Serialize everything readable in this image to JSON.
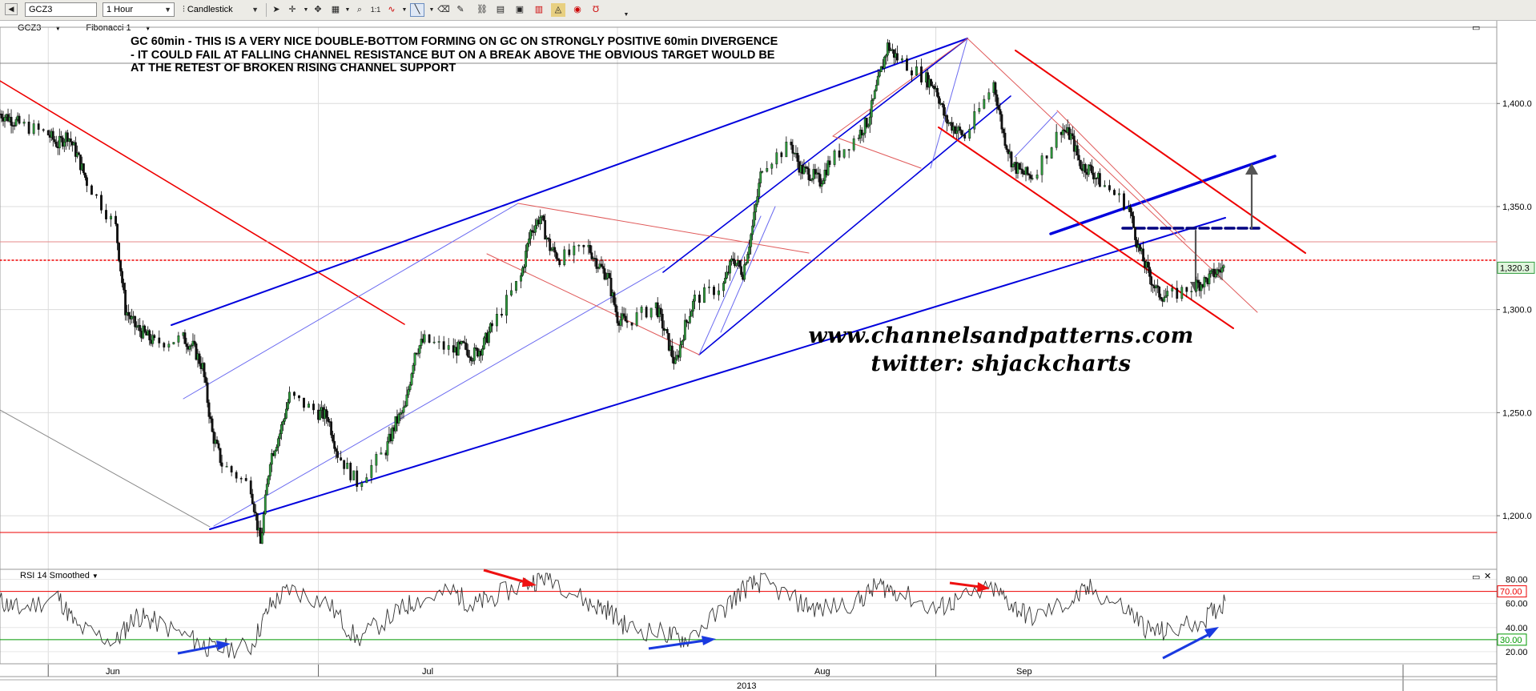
{
  "toolbar": {
    "symbol": "GCZ3",
    "interval": "1 Hour",
    "chart_type": "Candlestick",
    "icons": [
      "cursor-arrow-icon",
      "crosshair-icon",
      "grid-icon",
      "zoom-icon",
      "one-to-one-icon",
      "chart-style-icon",
      "line-tool-icon",
      "eraser-icon",
      "settings-icon",
      "template-icon",
      "alert-icon",
      "color-icon",
      "sound-icon",
      "unit-icon"
    ]
  },
  "instrument_bar": {
    "instrument": "GCZ3",
    "study": "Fibonacci 1"
  },
  "annotation": {
    "line1": "GC 60min - THIS IS A VERY NICE DOUBLE-BOTTOM FORMING ON GC ON STRONGLY POSITIVE 60min DIVERGENCE",
    "line2": "- IT COULD FAIL AT FALLING CHANNEL RESISTANCE BUT ON A BREAK ABOVE THE OBVIOUS TARGET WOULD BE",
    "line3": "AT THE RETEST OF BROKEN RISING CHANNEL SUPPORT"
  },
  "watermark": {
    "website": "www.channelsandpatterns.com",
    "twitter": "twitter: shjackcharts"
  },
  "colors": {
    "support": "#0000cc",
    "resistance": "#ee0000",
    "rsi": "#333333"
  },
  "chart_data": [
    {
      "type": "line",
      "series": [
        {
          "name": "",
          "x": [
            "2013-05-29",
            "2013-05-30",
            "2013-05-31",
            "2013-06-03",
            "2013-06-04",
            "2013-06-05",
            "2013-06-06",
            "2013-06-07",
            "2013-06-10",
            "2013-06-11",
            "2013-06-12",
            "2013-06-13",
            "2013-06-14",
            "2013-06-17",
            "2013-06-18",
            "2013-06-19",
            "2013-06-20",
            "2013-06-21",
            "2013-06-24",
            "2013-06-25",
            "2013-06-26",
            "2013-06-27",
            "2013-06-28",
            "2013-07-01",
            "2013-07-02",
            "2013-07-03",
            "2013-07-05",
            "2013-07-08",
            "2013-07-09",
            "2013-07-10",
            "2013-07-11",
            "2013-07-12",
            "2013-07-15",
            "2013-07-16",
            "2013-07-17",
            "2013-07-18",
            "2013-07-19",
            "2013-07-22",
            "2013-07-23",
            "2013-07-24",
            "2013-07-25",
            "2013-07-26",
            "2013-07-29",
            "2013-07-30",
            "2013-07-31",
            "2013-08-01",
            "2013-08-02",
            "2013-08-05",
            "2013-08-06",
            "2013-08-07",
            "2013-08-08",
            "2013-08-09",
            "2013-08-12",
            "2013-08-13",
            "2013-08-14",
            "2013-08-15",
            "2013-08-16",
            "2013-08-19",
            "2013-08-20",
            "2013-08-21",
            "2013-08-22",
            "2013-08-23",
            "2013-08-26",
            "2013-08-27",
            "2013-08-28",
            "2013-08-29",
            "2013-08-30",
            "2013-09-02",
            "2013-09-03",
            "2013-09-04",
            "2013-09-05",
            "2013-09-06",
            "2013-09-09",
            "2013-09-10",
            "2013-09-11",
            "2013-09-12",
            "2013-09-13",
            "2013-09-16",
            "2013-09-17",
            "2013-09-18",
            "2013-09-19",
            "2013-09-20",
            "2013-09-23",
            "2013-09-24",
            "2013-09-25",
            "2013-09-26",
            "2013-09-27",
            "2013-09-30",
            "2013-10-01",
            "2013-10-02",
            "2013-10-03"
          ],
          "y": [
            1395,
            1393,
            1390,
            1385,
            1380,
            1385,
            1375,
            1362,
            1340,
            1300,
            1292,
            1288,
            1284,
            1286,
            1282,
            1272,
            1240,
            1225,
            1214,
            1186,
            1228,
            1240,
            1258,
            1250,
            1248,
            1230,
            1216,
            1232,
            1245,
            1252,
            1280,
            1285,
            1280,
            1282,
            1278,
            1282,
            1292,
            1316,
            1338,
            1345,
            1330,
            1325,
            1330,
            1322,
            1316,
            1296,
            1294,
            1302,
            1288,
            1273,
            1292,
            1305,
            1312,
            1325,
            1318,
            1340,
            1370,
            1380,
            1368,
            1366,
            1362,
            1372,
            1385,
            1392,
            1410,
            1428,
            1422,
            1412,
            1408,
            1392,
            1388,
            1384,
            1410,
            1385,
            1370,
            1366,
            1365,
            1388,
            1384,
            1370,
            1368,
            1362,
            1350,
            1330,
            1318,
            1308,
            1306,
            1312,
            1314,
            1318,
            1320.3
          ]
        }
      ],
      "y_ticks": [
        "1,200.0",
        "1,250.0",
        "1,300.0",
        "1,350.0",
        "1,400.0"
      ],
      "ylim": [
        1174,
        1437
      ],
      "x_labels": [
        "Jun",
        "Jul",
        "Aug",
        "Sep"
      ],
      "year_label": "2013",
      "last_price_label": "1,320.3",
      "last_price": 1320.3,
      "grid": true
    },
    {
      "type": "line",
      "title": "RSI 14 Smoothed",
      "series": [
        {
          "name": "",
          "x": [
            "2013-05-29",
            "2013-05-31",
            "2013-06-04",
            "2013-06-06",
            "2013-06-10",
            "2013-06-12",
            "2013-06-14",
            "2013-06-18",
            "2013-06-20",
            "2013-06-24",
            "2013-06-26",
            "2013-06-28",
            "2013-07-02",
            "2013-07-05",
            "2013-07-09",
            "2013-07-11",
            "2013-07-15",
            "2013-07-17",
            "2013-07-19",
            "2013-07-23",
            "2013-07-25",
            "2013-07-29",
            "2013-07-31",
            "2013-08-02",
            "2013-08-06",
            "2013-08-08",
            "2013-08-12",
            "2013-08-14",
            "2013-08-16",
            "2013-08-20",
            "2013-08-22",
            "2013-08-26",
            "2013-08-28",
            "2013-08-30",
            "2013-09-03",
            "2013-09-05",
            "2013-09-09",
            "2013-09-11",
            "2013-09-13",
            "2013-09-17",
            "2013-09-19",
            "2013-09-23",
            "2013-09-25",
            "2013-09-27",
            "2013-10-01",
            "2013-10-03"
          ],
          "y": [
            62,
            55,
            66,
            40,
            28,
            50,
            45,
            30,
            22,
            24,
            58,
            72,
            60,
            30,
            52,
            62,
            70,
            58,
            65,
            78,
            83,
            60,
            55,
            40,
            35,
            30,
            55,
            72,
            78,
            60,
            55,
            62,
            75,
            70,
            55,
            62,
            72,
            58,
            48,
            62,
            72,
            54,
            38,
            36,
            48,
            62
          ]
        }
      ],
      "y_ticks": [
        "20.00",
        "40.00",
        "60.00",
        "80.00"
      ],
      "ylim": [
        10,
        85
      ],
      "reference_lines": [
        {
          "value": 70,
          "label": "70.00",
          "color": "#ee0000"
        },
        {
          "value": 30,
          "label": "30.00",
          "color": "#009900"
        }
      ]
    }
  ]
}
